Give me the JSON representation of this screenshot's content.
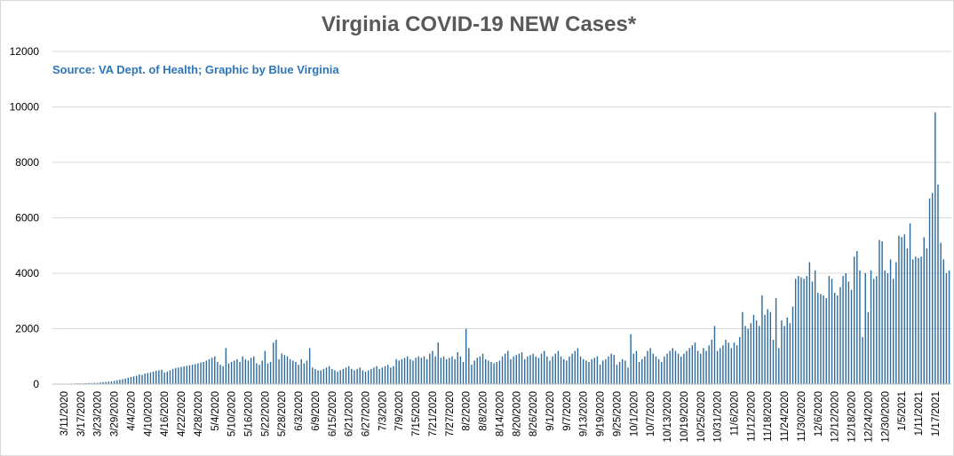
{
  "chart_data": {
    "type": "bar",
    "title": "Virginia COVID-19 NEW Cases*",
    "subtitle": "Source: VA Dept. of Health; Graphic by Blue Virginia",
    "xlabel": "",
    "ylabel": "",
    "ylim": [
      0,
      12000
    ],
    "yticks": [
      0,
      2000,
      4000,
      6000,
      8000,
      10000,
      12000
    ],
    "start_date": "2020-03-09",
    "xtick_labels": [
      "3/11/2020",
      "3/17/2020",
      "3/23/2020",
      "3/29/2020",
      "4/4/2020",
      "4/10/2020",
      "4/16/2020",
      "4/22/2020",
      "4/28/2020",
      "5/4/2020",
      "5/10/2020",
      "5/16/2020",
      "5/22/2020",
      "5/28/2020",
      "6/3/2020",
      "6/9/2020",
      "6/15/2020",
      "6/21/2020",
      "6/27/2020",
      "7/3/2020",
      "7/9/2020",
      "7/15/2020",
      "7/21/2020",
      "7/27/2020",
      "8/2/2020",
      "8/8/2020",
      "8/14/2020",
      "8/20/2020",
      "8/26/2020",
      "9/1/2020",
      "9/7/2020",
      "9/13/2020",
      "9/19/2020",
      "9/25/2020",
      "10/1/2020",
      "10/7/2020",
      "10/13/2020",
      "10/19/2020",
      "10/25/2020",
      "10/31/2020",
      "11/6/2020",
      "11/12/2020",
      "11/18/2020",
      "11/24/2020",
      "11/30/2020",
      "12/6/2020",
      "12/12/2020",
      "12/18/2020",
      "12/24/2020",
      "12/30/2020",
      "1/5/2021",
      "1/11/2021",
      "1/17/2021"
    ],
    "values": [
      5,
      5,
      10,
      10,
      15,
      20,
      25,
      30,
      25,
      30,
      35,
      40,
      40,
      50,
      45,
      60,
      70,
      80,
      90,
      100,
      120,
      140,
      160,
      180,
      200,
      230,
      260,
      280,
      300,
      350,
      330,
      380,
      400,
      420,
      450,
      480,
      500,
      520,
      420,
      450,
      500,
      550,
      580,
      600,
      620,
      640,
      660,
      680,
      700,
      720,
      750,
      780,
      800,
      850,
      900,
      950,
      1000,
      800,
      700,
      650,
      1300,
      750,
      800,
      850,
      900,
      800,
      1000,
      900,
      850,
      950,
      1000,
      750,
      700,
      850,
      1200,
      750,
      800,
      1500,
      1600,
      900,
      1100,
      1050,
      1000,
      900,
      850,
      800,
      700,
      900,
      750,
      850,
      1300,
      600,
      550,
      500,
      500,
      550,
      600,
      650,
      550,
      500,
      450,
      500,
      550,
      600,
      650,
      550,
      500,
      550,
      600,
      500,
      450,
      500,
      550,
      600,
      650,
      550,
      600,
      650,
      700,
      600,
      650,
      900,
      850,
      900,
      950,
      1000,
      900,
      850,
      950,
      1000,
      950,
      1000,
      900,
      1100,
      1200,
      1000,
      1500,
      950,
      1000,
      900,
      950,
      1000,
      900,
      1150,
      1000,
      800,
      2000,
      1300,
      700,
      850,
      950,
      1000,
      1100,
      900,
      850,
      800,
      750,
      800,
      850,
      1000,
      1100,
      1200,
      900,
      1000,
      1050,
      1100,
      1150,
      900,
      1000,
      1050,
      1100,
      1000,
      950,
      1100,
      1200,
      1000,
      850,
      1000,
      1100,
      1200,
      1000,
      900,
      850,
      1000,
      1100,
      1200,
      1300,
      1000,
      900,
      850,
      800,
      900,
      950,
      1000,
      700,
      850,
      900,
      1000,
      1100,
      1050,
      700,
      800,
      900,
      850,
      600,
      1800,
      1100,
      1200,
      800,
      900,
      1000,
      1200,
      1300,
      1100,
      1000,
      900,
      800,
      1000,
      1100,
      1200,
      1300,
      1200,
      1100,
      1000,
      1100,
      1200,
      1300,
      1400,
      1500,
      1200,
      1100,
      1300,
      1200,
      1400,
      1600,
      2100,
      1200,
      1300,
      1400,
      1600,
      1500,
      1300,
      1500,
      1400,
      1700,
      2600,
      2100,
      2000,
      2200,
      2500,
      2300,
      2100,
      3200,
      2500,
      2700,
      2600,
      1600,
      3100,
      1300,
      2300,
      2100,
      2400,
      2200,
      2800,
      3800,
      3900,
      3850,
      3800,
      3900,
      4400,
      3700,
      4100,
      3300,
      3250,
      3200,
      3100,
      3900,
      3800,
      3300,
      3200,
      3500,
      3900,
      4000,
      3700,
      3400,
      4600,
      4800,
      4100,
      1700,
      4000,
      2600,
      4100,
      3800,
      3900,
      5200,
      5150,
      4100,
      4000,
      4500,
      3800,
      4400,
      5350,
      5300,
      5400,
      4900,
      5800,
      4500,
      4600,
      4550,
      4600,
      5300,
      4900,
      6700,
      6900,
      9800,
      7200,
      5100,
      4500,
      4000,
      4100
    ]
  }
}
